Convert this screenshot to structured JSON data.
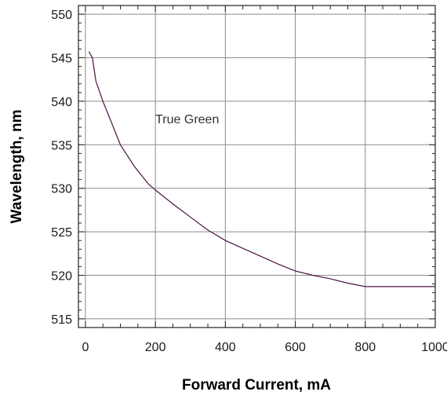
{
  "chart_data": {
    "type": "line",
    "title": "",
    "xlabel": "Forward Current, mA",
    "ylabel": "Wavelength, nm",
    "xlim": [
      -20,
      1000
    ],
    "ylim": [
      514,
      551
    ],
    "xticks": [
      0,
      200,
      400,
      600,
      800,
      1000
    ],
    "yticks": [
      515,
      520,
      525,
      530,
      535,
      540,
      545,
      550
    ],
    "grid": true,
    "annotation": {
      "text": "True Green",
      "x": 200,
      "y": 538
    },
    "series": [
      {
        "color": "#4b1446",
        "x": [
          10,
          20,
          30,
          50,
          75,
          100,
          140,
          180,
          200,
          250,
          300,
          350,
          400,
          450,
          500,
          550,
          600,
          650,
          700,
          750,
          800,
          850,
          900,
          1000
        ],
        "y": [
          545.7,
          545.0,
          542.3,
          540.0,
          537.5,
          535.0,
          532.5,
          530.5,
          529.8,
          528.2,
          526.7,
          525.2,
          524.0,
          523.1,
          522.2,
          521.3,
          520.5,
          520.0,
          519.6,
          519.1,
          518.7,
          518.7,
          518.7,
          518.7
        ]
      }
    ]
  }
}
